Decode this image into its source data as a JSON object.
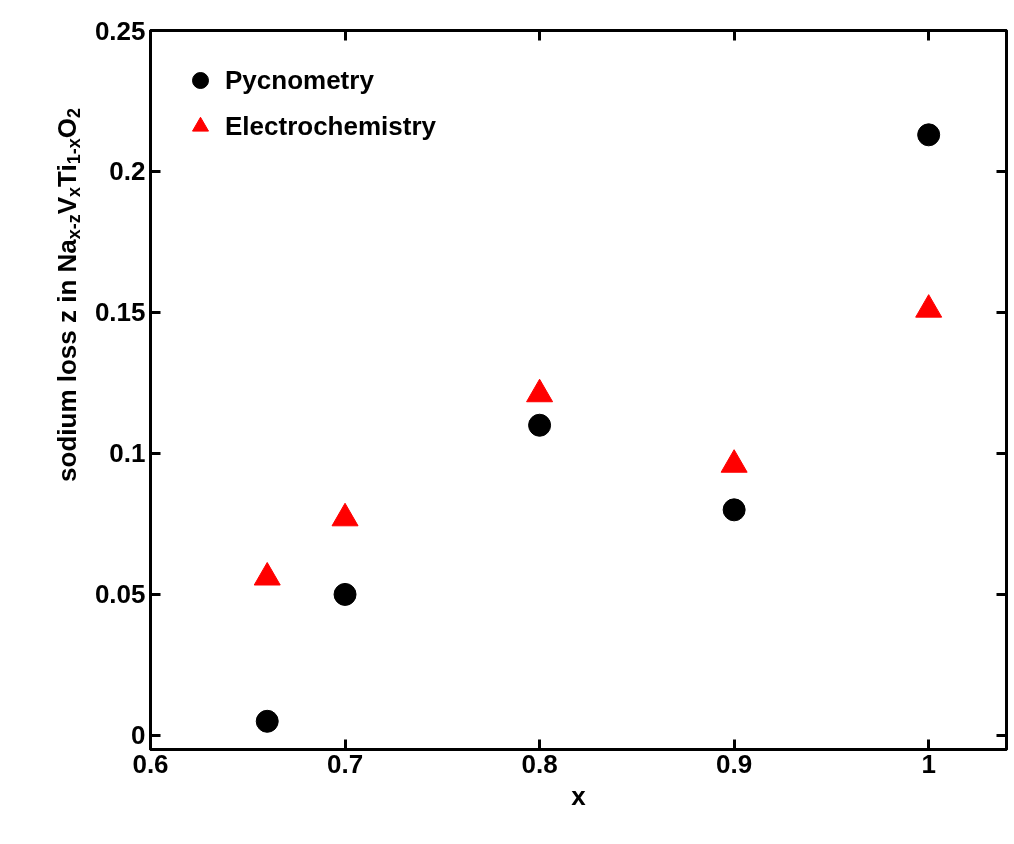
{
  "chart_data": {
    "type": "scatter",
    "xlabel": "x",
    "ylabel": "sodium loss z in Na$_{x-z}$V$_{x}$Ti$_{1-x}$O$_{2}$",
    "x": [
      0.66,
      0.7,
      0.8,
      0.9,
      1.0
    ],
    "series": [
      {
        "name": "Pycnometry",
        "color": "#000000",
        "marker": "circle",
        "values": [
          0.005,
          0.05,
          0.11,
          0.08,
          0.213
        ]
      },
      {
        "name": "Electrochemistry",
        "color": "#ff0000",
        "marker": "triangle",
        "values": [
          0.056,
          0.077,
          0.121,
          0.096,
          0.151
        ]
      }
    ],
    "xlim": [
      0.6,
      1.04
    ],
    "ylim": [
      -0.005,
      0.25
    ],
    "xticks": [
      0.6,
      0.7,
      0.8,
      0.9,
      1
    ],
    "yticks": [
      0,
      0.05,
      0.1,
      0.15,
      0.2,
      0.25
    ],
    "grid": false,
    "legend": "top left"
  }
}
